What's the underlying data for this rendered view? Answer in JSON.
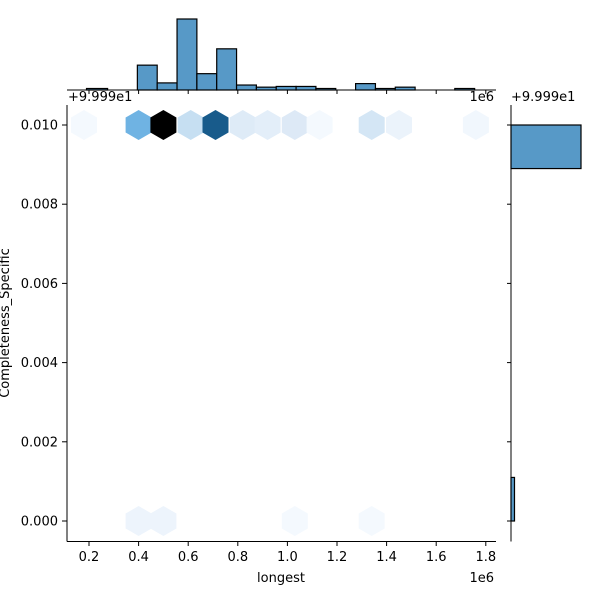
{
  "chart_data": {
    "type": "hexbin-jointplot",
    "title": "",
    "xlabel": "longest",
    "ylabel": "Completeness_Specific",
    "x_offset_label": "1e6",
    "y_offset_label": "+9.999e1",
    "top_hist_offset_label": "+9.999e1",
    "top_hist_scale_label": "1e6",
    "right_hist_offset_label": "+9.999e1",
    "xlim": [
      0.11,
      1.84
    ],
    "ylim": [
      -0.0006,
      0.0105
    ],
    "x_ticks": [
      "0.2",
      "0.4",
      "0.6",
      "0.8",
      "1.0",
      "1.2",
      "1.4",
      "1.6",
      "1.8"
    ],
    "x_tick_values": [
      0.2,
      0.4,
      0.6,
      0.8,
      1.0,
      1.2,
      1.4,
      1.6,
      1.8
    ],
    "y_ticks": [
      "0.000",
      "0.002",
      "0.004",
      "0.006",
      "0.008",
      "0.010"
    ],
    "y_tick_values": [
      0.0,
      0.002,
      0.004,
      0.006,
      0.008,
      0.01
    ],
    "grid": false,
    "colormap": "Blues",
    "hex_cells": [
      {
        "x": 0.18,
        "y": 0.01,
        "color": "#f4f9fe"
      },
      {
        "x": 0.4,
        "y": 0.01,
        "color": "#6fb3e3"
      },
      {
        "x": 0.5,
        "y": 0.01,
        "color": "#000000"
      },
      {
        "x": 0.61,
        "y": 0.01,
        "color": "#c6dff2"
      },
      {
        "x": 0.71,
        "y": 0.01,
        "color": "#185b8b"
      },
      {
        "x": 0.82,
        "y": 0.01,
        "color": "#deebf7"
      },
      {
        "x": 0.92,
        "y": 0.01,
        "color": "#e3eef9"
      },
      {
        "x": 1.03,
        "y": 0.01,
        "color": "#dde9f6"
      },
      {
        "x": 1.13,
        "y": 0.01,
        "color": "#f4f9fe"
      },
      {
        "x": 1.34,
        "y": 0.01,
        "color": "#d4e6f5"
      },
      {
        "x": 1.45,
        "y": 0.01,
        "color": "#ebf3fb"
      },
      {
        "x": 1.76,
        "y": 0.01,
        "color": "#f1f7fd"
      },
      {
        "x": 0.4,
        "y": 0.0,
        "color": "#edf4fc"
      },
      {
        "x": 0.5,
        "y": 0.0,
        "color": "#edf4fc"
      },
      {
        "x": 1.03,
        "y": 0.0,
        "color": "#f4f9fe"
      },
      {
        "x": 1.34,
        "y": 0.0,
        "color": "#f4f9fe"
      }
    ],
    "top_histogram": {
      "bin_edges": [
        0.19,
        0.275,
        0.395,
        0.475,
        0.555,
        0.635,
        0.715,
        0.795,
        0.875,
        0.955,
        1.035,
        1.115,
        1.195,
        1.275,
        1.355,
        1.435,
        1.515,
        1.595,
        1.675,
        1.755
      ],
      "relative_heights": [
        0.02,
        0.0,
        0.35,
        0.1,
        1.0,
        0.23,
        0.58,
        0.07,
        0.04,
        0.05,
        0.05,
        0.01,
        0.0,
        0.09,
        0.01,
        0.04,
        0.0,
        0.0,
        0.01
      ],
      "color": "#5799c7"
    },
    "right_histogram": {
      "bins": [
        {
          "y_from": 0.0,
          "y_to": 0.0011,
          "relative_width": 0.05
        },
        {
          "y_from": 0.0089,
          "y_to": 0.01,
          "relative_width": 1.0
        }
      ],
      "color": "#5799c7"
    }
  }
}
